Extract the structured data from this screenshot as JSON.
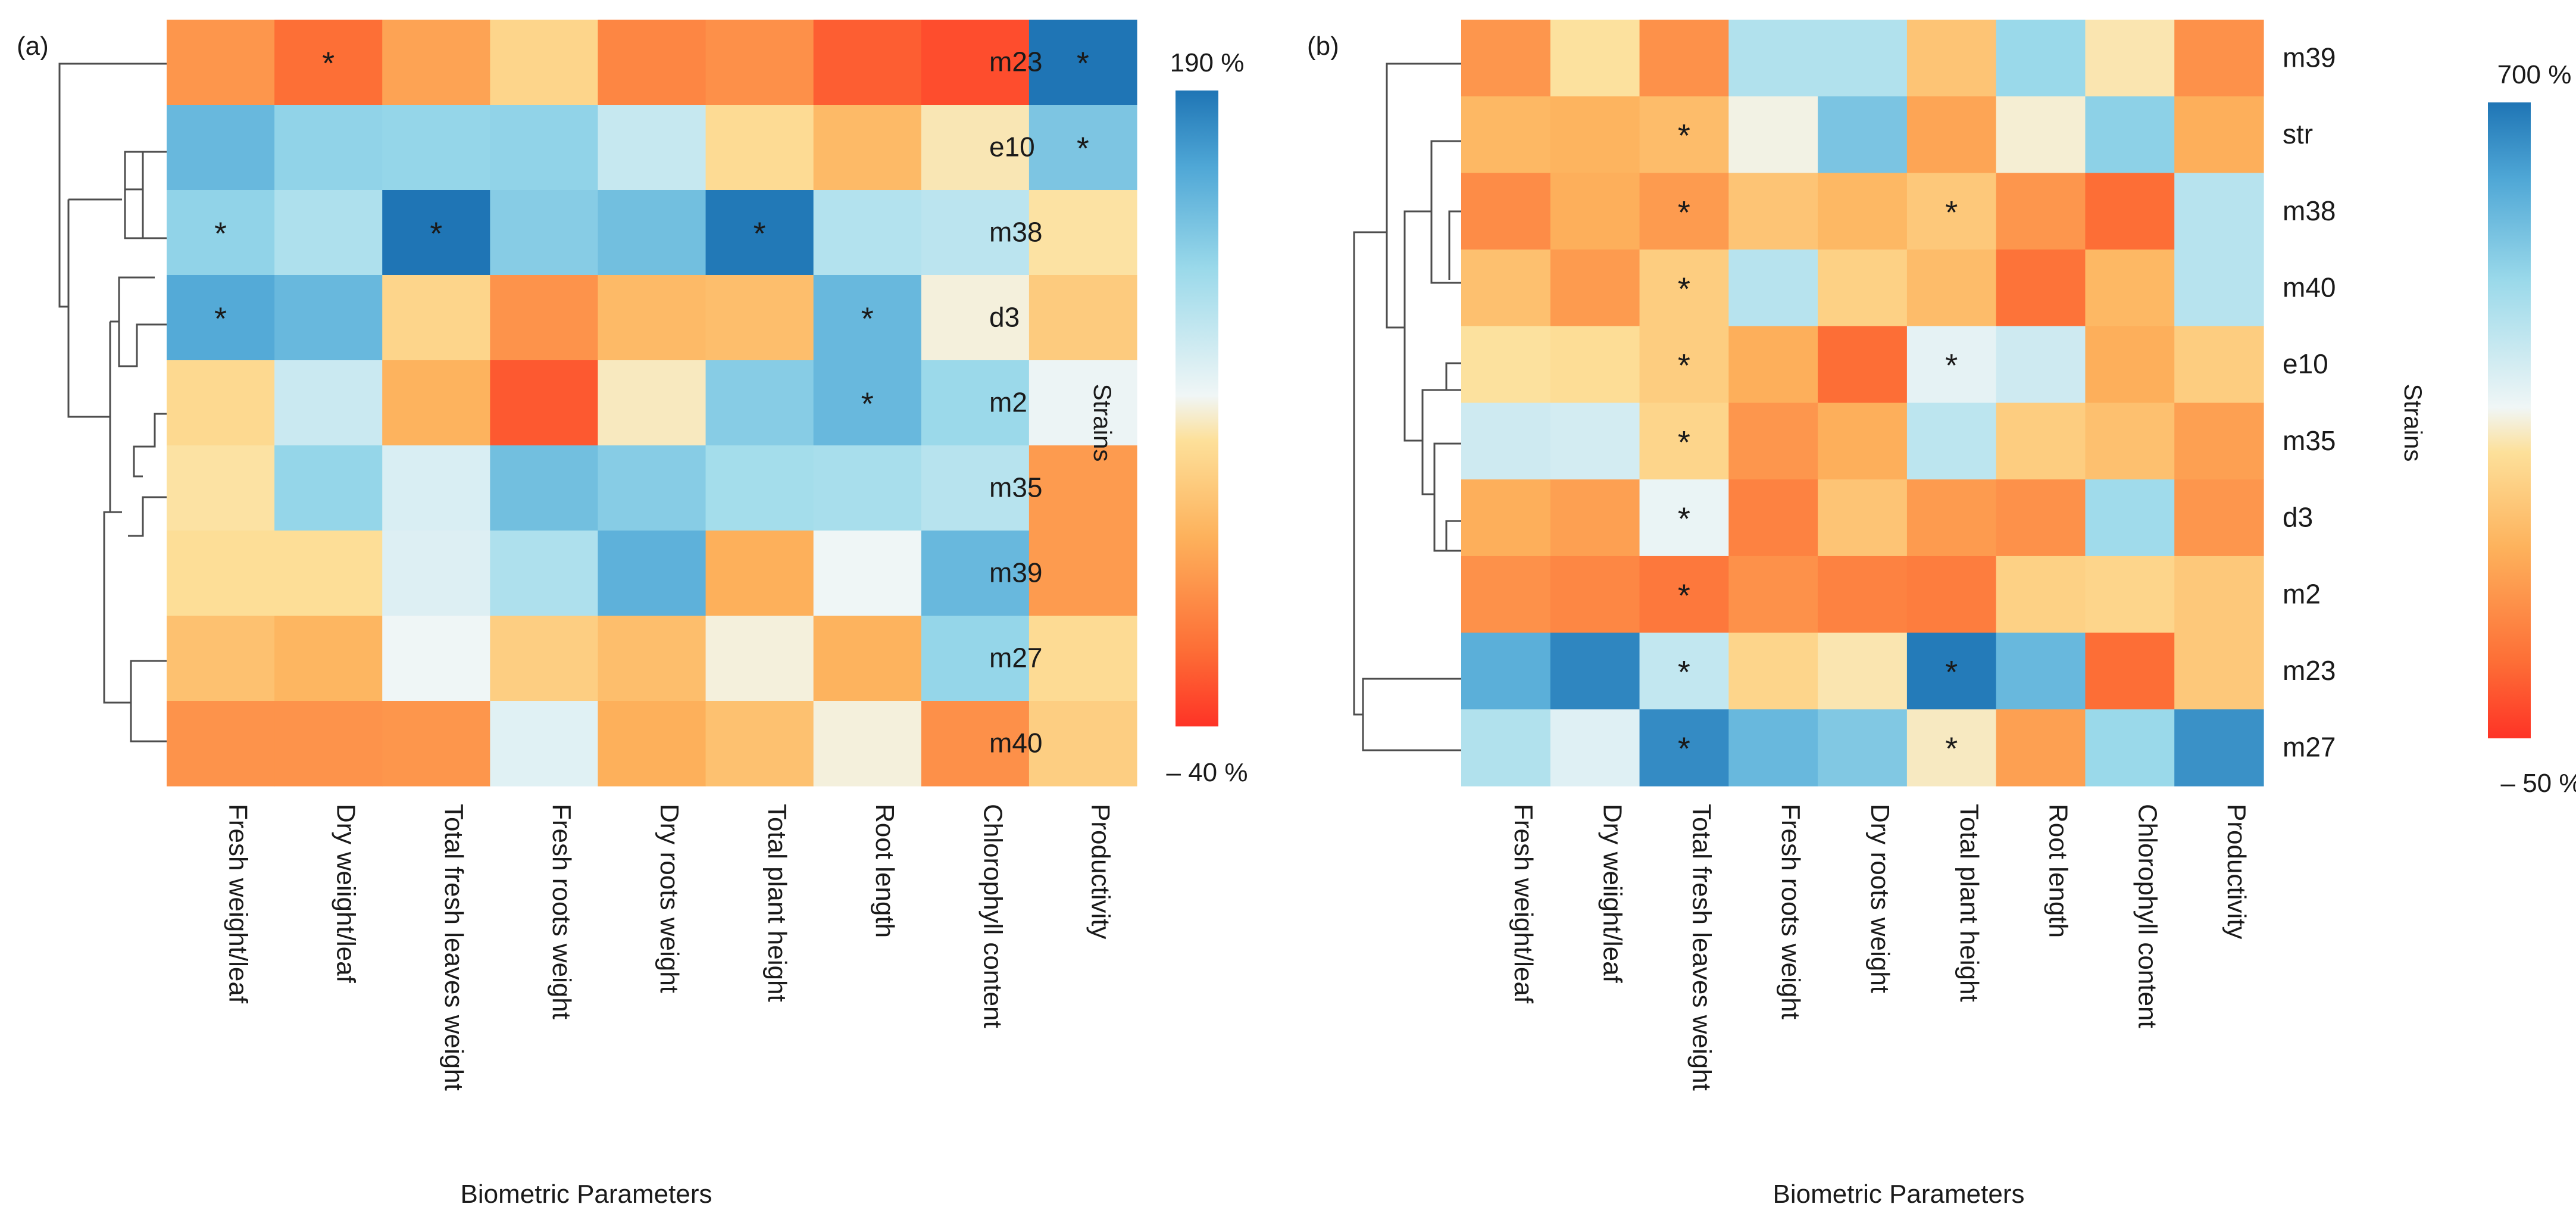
{
  "figure": {
    "axis_title": "Biometric Parameters",
    "strains_label": "Strains"
  },
  "chart_data": [
    {
      "type": "heatmap",
      "panel": "(a)",
      "title": "",
      "xlabel": "Biometric Parameters",
      "ylabel": "Strains",
      "columns": [
        "Fresh weight/leaf",
        "Dry weiight/leaf",
        "Total fresh leaves weight",
        "Fresh roots weight",
        "Dry roots weight",
        "Total plant height",
        "Root length",
        "Chlorophyll content",
        "Productivity"
      ],
      "rows": [
        "m23",
        "e10",
        "m38",
        "d3",
        "m2",
        "m35",
        "m39",
        "m27",
        "m40"
      ],
      "values": [
        [
          12,
          -12,
          20,
          55,
          2,
          8,
          -20,
          -28,
          190
        ],
        [
          150,
          130,
          128,
          130,
          102,
          60,
          35,
          68,
          140
        ],
        [
          130,
          115,
          190,
          135,
          145,
          188,
          112,
          108,
          65
        ],
        [
          160,
          150,
          55,
          10,
          35,
          38,
          150,
          75,
          48
        ],
        [
          58,
          100,
          30,
          -22,
          70,
          135,
          150,
          125,
          82
        ],
        [
          65,
          128,
          92,
          145,
          135,
          120,
          118,
          110,
          15
        ],
        [
          62,
          62,
          90,
          115,
          155,
          28,
          80,
          150,
          15
        ],
        [
          40,
          32,
          80,
          50,
          38,
          75,
          30,
          128,
          60
        ],
        [
          10,
          10,
          12,
          88,
          28,
          40,
          75,
          8,
          50
        ]
      ],
      "significant": [
        [
          0,
          1
        ],
        [
          0,
          8
        ],
        [
          1,
          8
        ],
        [
          2,
          0
        ],
        [
          2,
          2
        ],
        [
          2,
          5
        ],
        [
          3,
          0
        ],
        [
          3,
          6
        ],
        [
          4,
          6
        ]
      ],
      "colorbar": {
        "max_label": "190 %",
        "min_label": "– 40 %",
        "min": -40,
        "max": 190
      },
      "colors": {
        "low": "#fe3326",
        "mid": "#f0f6f6",
        "high": "#1f75b5"
      }
    },
    {
      "type": "heatmap",
      "panel": "(b)",
      "title": "",
      "xlabel": "Biometric Parameters",
      "ylabel": "Strains",
      "columns": [
        "Fresh weight/leaf",
        "Dry weiight/leaf",
        "Total fresh leaves weight",
        "Fresh roots weight",
        "Dry roots weight",
        "Total plant height",
        "Root length",
        "Chlorophyll content",
        "Productivity"
      ],
      "rows": [
        "m39",
        "str",
        "m38",
        "m40",
        "e10",
        "m35",
        "d3",
        "m2",
        "m23",
        "m27"
      ],
      "values": [
        [
          120,
          290,
          110,
          450,
          450,
          220,
          490,
          300,
          110
        ],
        [
          190,
          180,
          200,
          330,
          540,
          150,
          320,
          510,
          170
        ],
        [
          100,
          170,
          130,
          220,
          190,
          230,
          120,
          40,
          440
        ],
        [
          210,
          130,
          240,
          440,
          250,
          200,
          50,
          190,
          440
        ],
        [
          290,
          280,
          240,
          170,
          40,
          360,
          400,
          170,
          240
        ],
        [
          400,
          390,
          260,
          120,
          170,
          430,
          240,
          210,
          140
        ],
        [
          170,
          140,
          350,
          80,
          220,
          130,
          110,
          480,
          120
        ],
        [
          110,
          90,
          60,
          110,
          80,
          70,
          250,
          260,
          230
        ],
        [
          590,
          670,
          420,
          260,
          300,
          690,
          570,
          40,
          230
        ],
        [
          450,
          370,
          660,
          570,
          530,
          310,
          140,
          490,
          650
        ]
      ],
      "significant": [
        [
          1,
          2
        ],
        [
          2,
          2
        ],
        [
          2,
          5
        ],
        [
          3,
          2
        ],
        [
          4,
          2
        ],
        [
          4,
          5
        ],
        [
          5,
          2
        ],
        [
          6,
          2
        ],
        [
          7,
          2
        ],
        [
          8,
          2
        ],
        [
          8,
          5
        ],
        [
          9,
          2
        ],
        [
          9,
          5
        ]
      ],
      "colorbar": {
        "max_label": "700 %",
        "min_label": "– 50 %",
        "min": -50,
        "max": 700
      },
      "colors": {
        "low": "#fe3326",
        "mid": "#f0f6f6",
        "high": "#1f75b5"
      }
    }
  ]
}
